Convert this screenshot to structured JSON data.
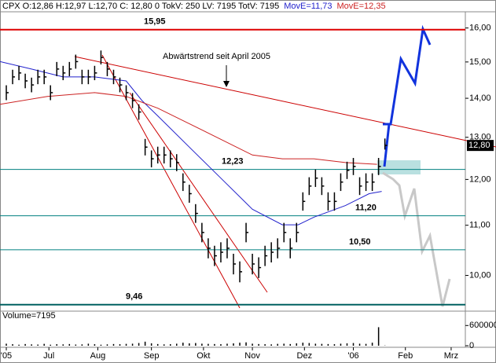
{
  "chart_data": {
    "type": "ohlc",
    "quote": "CPX O:12,86 H:12,97 L:12,70 C: 12,80 0 TokV: 250 LV: 7195 TotV: 7195",
    "annotation": "Abwärtstrend seit April 2005",
    "x": [
      4,
      8,
      12,
      16,
      20,
      24,
      28,
      32,
      36,
      40,
      44,
      48,
      52,
      56,
      60,
      64,
      68,
      72,
      76,
      80,
      84,
      88,
      92,
      96,
      100,
      104,
      108,
      112,
      116,
      120,
      124,
      128,
      132,
      136,
      140,
      144,
      148,
      152,
      156,
      160,
      164,
      168,
      172,
      176,
      180,
      184,
      188,
      192,
      196,
      200,
      204,
      208,
      212,
      216,
      220,
      224,
      228,
      232,
      236,
      240,
      244
    ],
    "high": [
      14.35,
      14.78,
      14.89,
      14.67,
      14.56,
      14.78,
      14.78,
      14.35,
      15.0,
      14.89,
      15.0,
      15.21,
      14.78,
      14.78,
      14.89,
      15.33,
      15.0,
      14.78,
      14.56,
      14.35,
      14.14,
      13.84,
      12.96,
      12.68,
      12.77,
      12.77,
      12.68,
      12.59,
      12.14,
      11.88,
      11.45,
      11.05,
      10.73,
      10.58,
      10.65,
      10.73,
      10.42,
      10.27,
      11.05,
      10.42,
      10.35,
      10.58,
      10.65,
      10.73,
      11.05,
      10.73,
      11.05,
      11.71,
      12.05,
      12.23,
      12.05,
      11.71,
      11.71,
      12.14,
      12.41,
      12.5,
      12.05,
      12.14,
      12.14,
      12.5,
      12.97
    ],
    "low": [
      13.95,
      14.38,
      14.49,
      14.27,
      14.16,
      14.38,
      14.38,
      13.95,
      14.6,
      14.49,
      14.6,
      14.81,
      14.38,
      14.38,
      14.49,
      14.93,
      14.6,
      14.38,
      14.16,
      13.95,
      13.74,
      13.44,
      12.56,
      12.28,
      12.37,
      12.37,
      12.28,
      12.19,
      11.74,
      11.48,
      11.05,
      10.65,
      10.33,
      10.18,
      10.25,
      10.33,
      10.02,
      9.87,
      10.65,
      10.02,
      9.95,
      10.18,
      10.25,
      10.33,
      10.65,
      10.33,
      10.65,
      11.31,
      11.65,
      11.83,
      11.65,
      11.31,
      11.31,
      11.74,
      12.01,
      12.1,
      11.65,
      11.74,
      11.74,
      12.1,
      12.7
    ],
    "close": [
      14.15,
      14.58,
      14.69,
      14.47,
      14.36,
      14.58,
      14.58,
      14.15,
      14.8,
      14.69,
      14.8,
      15.01,
      14.58,
      14.58,
      14.69,
      15.13,
      14.8,
      14.58,
      14.36,
      14.15,
      13.94,
      13.64,
      12.76,
      12.48,
      12.57,
      12.57,
      12.48,
      12.39,
      11.94,
      11.68,
      11.25,
      10.85,
      10.53,
      10.38,
      10.45,
      10.53,
      10.22,
      10.07,
      10.85,
      10.22,
      10.15,
      10.38,
      10.45,
      10.53,
      10.85,
      10.53,
      10.85,
      11.51,
      11.85,
      12.03,
      11.85,
      11.51,
      11.51,
      11.94,
      12.21,
      12.3,
      11.85,
      11.94,
      11.94,
      12.3,
      12.8
    ],
    "price_marker": {
      "value": 12.8,
      "label": "12,80"
    },
    "series": [
      {
        "name": "MovE=11,73",
        "color": "#2222cc",
        "x": [
          0,
          20,
          40,
          60,
          80,
          90,
          100,
          120,
          140,
          160,
          179,
          189,
          199,
          219,
          234,
          242
        ],
        "values": [
          15.01,
          14.8,
          14.58,
          14.58,
          14.47,
          13.94,
          13.54,
          12.76,
          12.03,
          11.34,
          11.01,
          11.01,
          11.17,
          11.42,
          11.68,
          11.73
        ]
      },
      {
        "name": "MovE=12,35",
        "color": "#cc2222",
        "x": [
          0,
          30,
          60,
          80,
          100,
          120,
          140,
          160,
          179,
          199,
          219,
          239
        ],
        "values": [
          13.84,
          14.05,
          14.15,
          14.05,
          13.74,
          13.34,
          12.95,
          12.57,
          12.48,
          12.48,
          12.39,
          12.35
        ]
      }
    ],
    "levels": [
      {
        "value": 15.95,
        "label": "15,95",
        "color": "#dd0000"
      },
      {
        "value": 12.23,
        "label": "12,23",
        "color": "#008080"
      },
      {
        "value": 11.2,
        "label": "11,20",
        "color": "#008080"
      },
      {
        "value": 10.5,
        "label": "10,50",
        "color": "#008080"
      },
      {
        "value": 9.46,
        "label": "9,46",
        "color": "#006060"
      }
    ],
    "log_scale": true,
    "ylim": [
      9.4,
      16.5
    ],
    "yticks": [
      {
        "value": 10,
        "label": "10,00"
      },
      {
        "value": 11,
        "label": "11,00"
      },
      {
        "value": 12,
        "label": "12,00"
      },
      {
        "value": 13,
        "label": "13,00"
      },
      {
        "value": 14,
        "label": "14,00"
      },
      {
        "value": 15,
        "label": "15,00"
      },
      {
        "value": 16,
        "label": "16,00"
      }
    ],
    "xlim": [
      0,
      295
    ],
    "xticks": [
      {
        "value": 4,
        "label": "'05"
      },
      {
        "value": 31,
        "label": "Jul"
      },
      {
        "value": 62,
        "label": "Aug"
      },
      {
        "value": 96,
        "label": "Sep"
      },
      {
        "value": 129,
        "label": "Okt"
      },
      {
        "value": 160,
        "label": "Nov"
      },
      {
        "value": 193,
        "label": "Dez"
      },
      {
        "value": 224,
        "label": "'06"
      },
      {
        "value": 257,
        "label": "Feb"
      },
      {
        "value": 286,
        "label": "Mrz"
      }
    ],
    "volume": {
      "label": "Volume=7195",
      "ylim": [
        0,
        700000
      ],
      "yticks": [
        0,
        600000
      ],
      "values": [
        60000,
        45000,
        30000,
        50000,
        40000,
        35000,
        55000,
        30000,
        45000,
        40000,
        50000,
        35000,
        40000,
        60000,
        45000,
        30000,
        40000,
        50000,
        45000,
        55000,
        60000,
        80000,
        120000,
        70000,
        50000,
        40000,
        45000,
        60000,
        90000,
        70000,
        80000,
        60000,
        55000,
        50000,
        45000,
        60000,
        70000,
        90000,
        100000,
        60000,
        50000,
        45000,
        40000,
        55000,
        60000,
        50000,
        70000,
        90000,
        80000,
        60000,
        55000,
        50000,
        45000,
        60000,
        70000,
        80000,
        60000,
        55000,
        90000,
        550000,
        7195
      ]
    }
  }
}
